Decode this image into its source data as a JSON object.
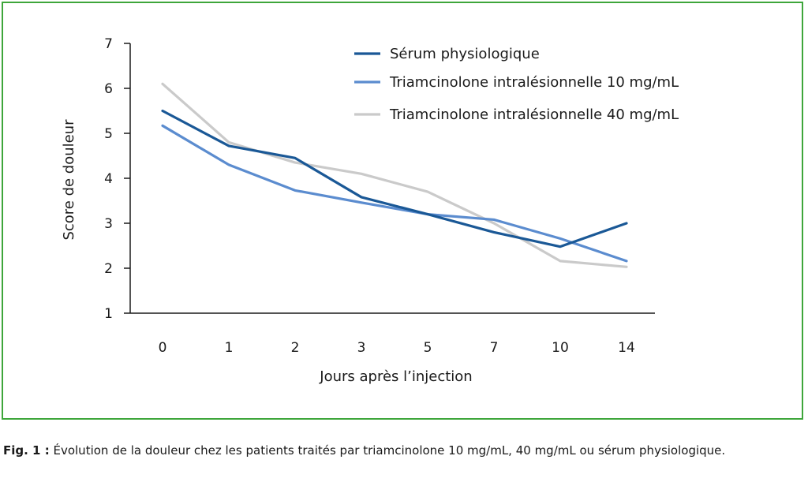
{
  "chart_data": {
    "type": "line",
    "xlabel": "Jours après l’injection",
    "ylabel": "Score de douleur",
    "categories": [
      "0",
      "1",
      "2",
      "3",
      "5",
      "7",
      "10",
      "14"
    ],
    "yticks": [
      "1",
      "2",
      "3",
      "4",
      "5",
      "6",
      "7"
    ],
    "ylim": [
      1,
      7
    ],
    "grid": false,
    "legend_position": "top-right",
    "series": [
      {
        "name": "Sérum physiologique",
        "color": "#1a5896",
        "values": [
          5.5,
          4.72,
          4.45,
          3.58,
          3.2,
          2.8,
          2.48,
          3.0
        ]
      },
      {
        "name": "Triamcinolone intralésionnelle 10 mg/mL",
        "color": "#5b8ccf",
        "values": [
          5.17,
          4.3,
          3.73,
          3.46,
          3.2,
          3.08,
          2.66,
          2.16
        ]
      },
      {
        "name": "Triamcinolone intralésionnelle 40 mg/mL",
        "color": "#cacaca",
        "values": [
          6.1,
          4.8,
          4.35,
          4.1,
          3.7,
          3.0,
          2.16,
          2.03
        ]
      }
    ]
  },
  "caption": {
    "label": "Fig. 1 :",
    "text": " Évolution de la douleur chez les patients traités par triamcinolone 10 mg/mL, 40 mg/mL ou sérum physiologique."
  }
}
